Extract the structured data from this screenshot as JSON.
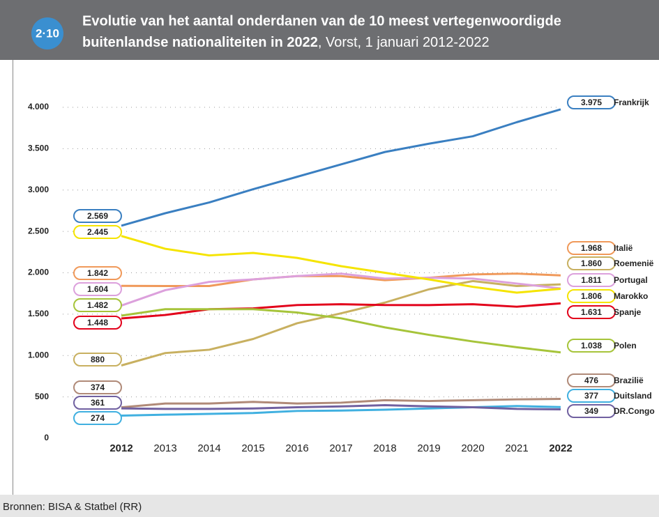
{
  "figure_number": "2·10",
  "chart_data": {
    "type": "line",
    "title": [
      "Evolutie van het aantal onderdanen van de 10 meest vertegenwoordigde",
      "buitenlandse nationaliteiten in 2022"
    ],
    "subtitle": ", Vorst, 1 januari 2012-2022",
    "categories": [
      "2012",
      "2013",
      "2014",
      "2015",
      "2016",
      "2017",
      "2018",
      "2019",
      "2020",
      "2021",
      "2022"
    ],
    "ylim": [
      0,
      4000
    ],
    "yticks": [
      0,
      500,
      {
        "value": 1000,
        "label": "1.000"
      },
      {
        "value": 1500,
        "label": "1.500"
      },
      {
        "value": 2000,
        "label": "2.000"
      },
      {
        "value": 2500,
        "label": "2.500"
      },
      {
        "value": 3000,
        "label": "3.000"
      },
      {
        "value": 3500,
        "label": "3.500"
      },
      {
        "value": 4000,
        "label": "4.000"
      }
    ],
    "grid": true,
    "series": [
      {
        "name": "Frankrijk",
        "color": "#3a7fc1",
        "values": [
          2569,
          2720,
          2850,
          3010,
          3160,
          3310,
          3460,
          3560,
          3650,
          3820,
          3975
        ],
        "value_labels": [
          "2.569",
          null,
          null,
          null,
          null,
          null,
          null,
          null,
          null,
          null,
          "3.975"
        ]
      },
      {
        "name": "Italië",
        "color": "#f0995a",
        "values": [
          1842,
          1840,
          1840,
          1920,
          1960,
          1960,
          1910,
          1940,
          1980,
          1990,
          1968
        ],
        "value_labels": [
          "1.842",
          null,
          null,
          null,
          null,
          null,
          null,
          null,
          null,
          null,
          "1.968"
        ]
      },
      {
        "name": "Roemenië",
        "color": "#c8b060",
        "values": [
          880,
          1030,
          1070,
          1200,
          1390,
          1510,
          1640,
          1800,
          1900,
          1840,
          1860
        ],
        "value_labels": [
          "880",
          null,
          null,
          null,
          null,
          null,
          null,
          null,
          null,
          null,
          "1.860"
        ]
      },
      {
        "name": "Portugal",
        "color": "#dca0dc",
        "values": [
          1604,
          1790,
          1890,
          1920,
          1960,
          1990,
          1930,
          1940,
          1930,
          1870,
          1811
        ],
        "value_labels": [
          "1.604",
          null,
          null,
          null,
          null,
          null,
          null,
          null,
          null,
          null,
          "1.811"
        ]
      },
      {
        "name": "Marokko",
        "color": "#f5e400",
        "values": [
          2445,
          2290,
          2210,
          2240,
          2180,
          2080,
          2000,
          1920,
          1830,
          1760,
          1806
        ],
        "value_labels": [
          "2.445",
          null,
          null,
          null,
          null,
          null,
          null,
          null,
          null,
          null,
          "1.806"
        ]
      },
      {
        "name": "Spanje",
        "color": "#e2001a",
        "values": [
          1448,
          1490,
          1560,
          1570,
          1610,
          1620,
          1610,
          1610,
          1620,
          1590,
          1631
        ],
        "value_labels": [
          "1.448",
          null,
          null,
          null,
          null,
          null,
          null,
          null,
          null,
          null,
          "1.631"
        ]
      },
      {
        "name": "Polen",
        "color": "#a6c43a",
        "values": [
          1482,
          1560,
          1560,
          1560,
          1520,
          1450,
          1340,
          1250,
          1170,
          1100,
          1038
        ],
        "value_labels": [
          "1.482",
          null,
          null,
          null,
          null,
          null,
          null,
          null,
          null,
          null,
          "1.038"
        ]
      },
      {
        "name": "Brazilië",
        "color": "#b08a78",
        "values": [
          374,
          420,
          420,
          440,
          420,
          430,
          460,
          450,
          460,
          470,
          476
        ]
      },
      {
        "name": "Duitsland",
        "color": "#40b0e0",
        "values": [
          274,
          285,
          295,
          305,
          330,
          335,
          345,
          360,
          375,
          390,
          377
        ]
      },
      {
        "name": "DR.Congo",
        "color": "#7060a0",
        "values": [
          361,
          355,
          355,
          360,
          375,
          385,
          400,
          385,
          375,
          355,
          349
        ]
      }
    ],
    "source": "Bronnen: BISA & Statbel (RR)"
  }
}
